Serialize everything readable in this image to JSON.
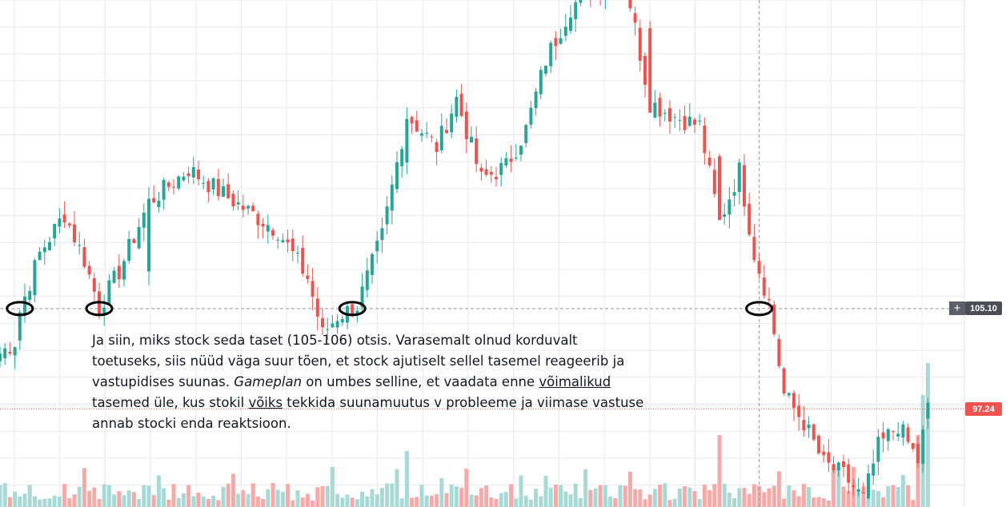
{
  "annotation": {
    "line1": "Ja siin, miks stock seda taset (105-106) otsis. Varasemalt olnud korduvalt",
    "line2": "toetuseks, siis nüüd väga suur tõen, et stock ajutiselt sellel tasemel reageerib ja",
    "line3": "vastupidises suunas.",
    "gameplan": "Gameplan",
    "line4": " on umbes selline, et vaadata enne ",
    "voimalikud": "võimalikud",
    "line5a": "tasemed üle, kus stokil ",
    "voiks": "võiks",
    "line5b": " tekkida suunamuutus v probleeme ja viimase vastuse",
    "line6": "annab stocki enda reaktsioon."
  },
  "price_labels": {
    "crosshair": "105.10",
    "last": "97.24"
  },
  "colors": {
    "up": "#26a69a",
    "down": "#ef5350",
    "up_volume": "#a7dad6",
    "down_volume": "#f7a9a7",
    "grid": "#e8e9ed",
    "crosshair": "#9598a1",
    "last_price_line": "#ef5350",
    "crosshair_label": "#4a4e59",
    "last_label": "#ef5350",
    "circle": "#000000"
  },
  "chart_data": {
    "type": "candlestick",
    "y_range": [
      89.6,
      129.2
    ],
    "support_level": 105.1,
    "last_price": 97.24,
    "circled_support_touches": [
      {
        "index": 4,
        "price": 105.1
      },
      {
        "index": 20,
        "price": 105.1
      },
      {
        "index": 71,
        "price": 105.1
      },
      {
        "index": 153,
        "price": 105.1
      }
    ],
    "gap_segment_end_index": 3,
    "anchors": [
      [
        0,
        101.6
      ],
      [
        3,
        102.5
      ],
      [
        4,
        104.9
      ],
      [
        8,
        109.4
      ],
      [
        13,
        112.5
      ],
      [
        17,
        108.9
      ],
      [
        20,
        105.2
      ],
      [
        24,
        108.0
      ],
      [
        30,
        113.4
      ],
      [
        38,
        116.0
      ],
      [
        44,
        114.3
      ],
      [
        50,
        112.7
      ],
      [
        56,
        111.2
      ],
      [
        62,
        107.5
      ],
      [
        65,
        103.1
      ],
      [
        68,
        104.5
      ],
      [
        72,
        105.3
      ],
      [
        77,
        110.8
      ],
      [
        82,
        120.2
      ],
      [
        88,
        117.7
      ],
      [
        92,
        121.5
      ],
      [
        97,
        115.2
      ],
      [
        102,
        116.2
      ],
      [
        106,
        119.1
      ],
      [
        110,
        124.5
      ],
      [
        115,
        128.6
      ],
      [
        120,
        130.5
      ],
      [
        126,
        130.8
      ],
      [
        131,
        121.2
      ],
      [
        136,
        120.1
      ],
      [
        141,
        119.4
      ],
      [
        145,
        111.8
      ],
      [
        149,
        115.9
      ],
      [
        152,
        109.4
      ],
      [
        155,
        105.6
      ],
      [
        158,
        98.4
      ],
      [
        162,
        96.2
      ],
      [
        166,
        93.0
      ],
      [
        170,
        92.1
      ],
      [
        174,
        90.2
      ],
      [
        177,
        94.3
      ],
      [
        181,
        96.0
      ],
      [
        185,
        93.2
      ],
      [
        187,
        97.3
      ]
    ],
    "volume_scale": [
      0,
      1
    ]
  }
}
